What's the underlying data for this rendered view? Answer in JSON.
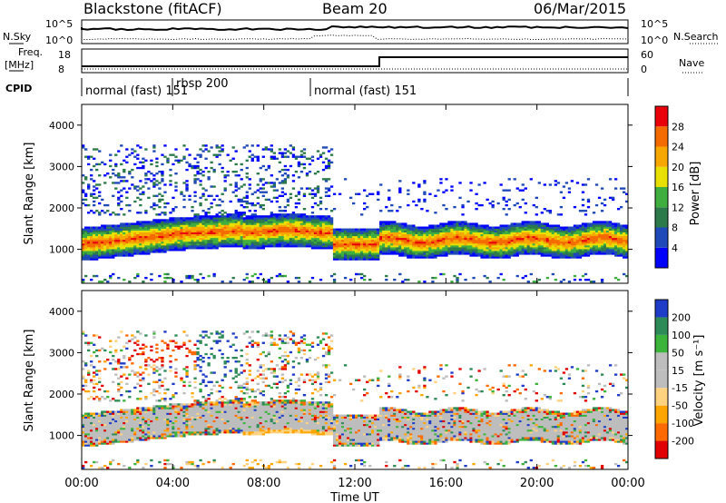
{
  "header": {
    "station": "Blackstone (fitACF)",
    "beam": "Beam 20",
    "date": "06/Mar/2015"
  },
  "noise_panel": {
    "left_label": "N.Sky",
    "right_label": "N.Search",
    "left_ticks": [
      "10^5",
      "10^0"
    ],
    "right_ticks": [
      "10^5",
      "10^0"
    ]
  },
  "freq_panel": {
    "left_label_line1": "Freq.",
    "left_label_line2": "[MHz]",
    "right_label": "Nave",
    "left_ticks": [
      18,
      8
    ],
    "right_ticks": [
      60,
      0
    ]
  },
  "cpid_panel": {
    "label": "CPID",
    "segments": [
      {
        "name": "normal (fast) 151",
        "start_hour": 0.0
      },
      {
        "name": "rbsp 200",
        "start_hour": 4.1
      },
      {
        "name": "normal (fast) 151",
        "start_hour": 10.2
      }
    ]
  },
  "colors": {
    "power_scale": [
      "#0000ff",
      "#1f49b8",
      "#2c7a4a",
      "#3fae3f",
      "#e8e000",
      "#f7a800",
      "#f46b00",
      "#e8000a"
    ],
    "velocity_scale": [
      "#e00000",
      "#ff6a00",
      "#ffa500",
      "#ffd280",
      "#bdbdbd",
      "#bdbdbd",
      "#3cb43c",
      "#2e8b57",
      "#1e3cc8"
    ]
  },
  "chart_data": [
    {
      "type": "heatmap",
      "name": "power",
      "ylabel": "Slant Range [km]",
      "ylim": [
        180,
        4500
      ],
      "yticks": [
        1000,
        2000,
        3000,
        4000
      ],
      "x_range_hours": [
        0,
        24
      ],
      "colorbar": {
        "label": "Power [dB]",
        "ticks": [
          4,
          8,
          12,
          16,
          20,
          24,
          28
        ],
        "range": [
          0,
          32
        ]
      },
      "features": [
        {
          "desc": "main band",
          "hours": [
            0,
            24
          ],
          "range_km": [
            900,
            1700
          ]
        },
        {
          "desc": "upper scatter",
          "hours": [
            0,
            11
          ],
          "range_km": [
            1800,
            3500
          ]
        }
      ]
    },
    {
      "type": "heatmap",
      "name": "velocity",
      "ylabel": "Slant Range [km]",
      "ylim": [
        180,
        4500
      ],
      "yticks": [
        1000,
        2000,
        3000,
        4000
      ],
      "xlabel": "Time UT",
      "xticks": [
        "00:00",
        "04:00",
        "08:00",
        "12:00",
        "16:00",
        "20:00",
        "00:00"
      ],
      "colorbar": {
        "label": "Velocity [m s⁻¹]",
        "ticks": [
          "200",
          "100",
          "50",
          "15",
          "-15",
          "-50",
          "-100",
          "-200"
        ]
      }
    }
  ]
}
